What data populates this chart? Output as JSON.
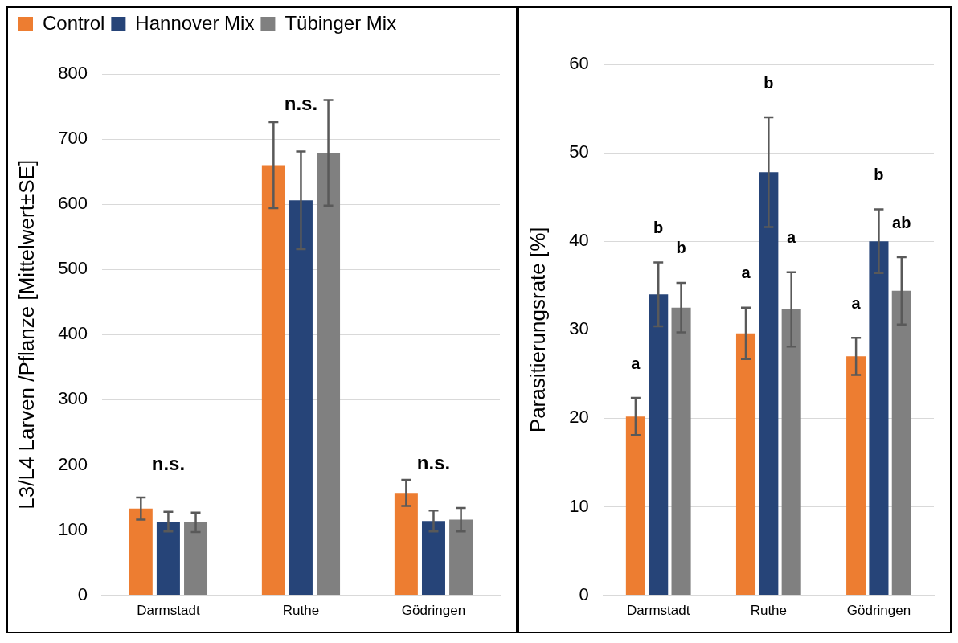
{
  "chart_data": [
    {
      "type": "bar",
      "ylabel": "L3/L4 Larven /Pflanze [Mittelwert±SE]",
      "categories": [
        "Darmstadt",
        "Ruthe",
        "Gödringen"
      ],
      "series": [
        {
          "name": "Control",
          "color": "#ed7d31",
          "values": [
            133,
            660,
            157
          ],
          "errors": [
            17,
            66,
            20
          ]
        },
        {
          "name": "Hannover Mix",
          "color": "#264478",
          "values": [
            113,
            606,
            114
          ],
          "errors": [
            15,
            75,
            16
          ]
        },
        {
          "name": "Tübinger Mix",
          "color": "#808080",
          "values": [
            112,
            679,
            116
          ],
          "errors": [
            15,
            81,
            18
          ]
        }
      ],
      "ylim": [
        0,
        800
      ],
      "yticks": [
        0,
        100,
        200,
        300,
        400,
        500,
        600,
        700,
        800
      ],
      "grid": "y",
      "legend": "top",
      "annotations": [
        "n.s.",
        "n.s.",
        "n.s."
      ]
    },
    {
      "type": "bar",
      "ylabel": "Parasitierungsrate [%]",
      "categories": [
        "Darmstadt",
        "Ruthe",
        "Gödringen"
      ],
      "series": [
        {
          "color": "#ed7d31",
          "values": [
            20.2,
            29.6,
            27
          ],
          "errors": [
            2.1,
            2.9,
            2.1
          ]
        },
        {
          "color": "#264478",
          "values": [
            34,
            47.8,
            40
          ],
          "errors": [
            3.6,
            6.2,
            3.6
          ]
        },
        {
          "color": "#808080",
          "values": [
            32.5,
            32.3,
            34.4
          ],
          "errors": [
            2.8,
            4.2,
            3.8
          ]
        }
      ],
      "ylim": [
        0,
        60
      ],
      "yticks": [
        0,
        10,
        20,
        30,
        40,
        50,
        60
      ],
      "grid": "y",
      "legend": false,
      "annotations": [
        "a",
        "b",
        "b",
        "a",
        "b",
        "a",
        "a",
        "b",
        "ab"
      ]
    }
  ]
}
